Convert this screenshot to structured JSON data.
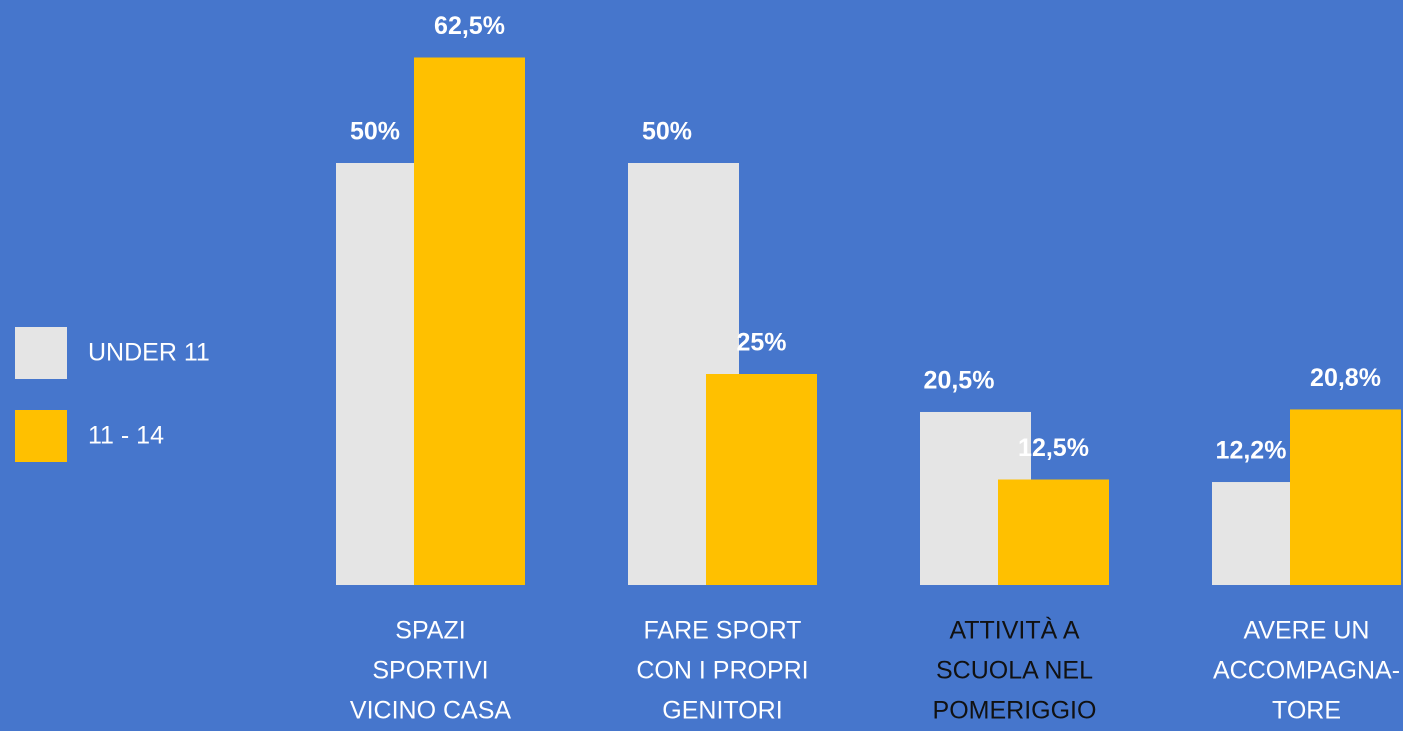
{
  "chart_data": {
    "type": "bar",
    "categories": [
      [
        "SPAZI",
        "SPORTIVI",
        "VICINO CASA"
      ],
      [
        "FARE SPORT",
        "CON I PROPRI",
        "GENITORI"
      ],
      [
        "ATTIVITÀ A",
        "SCUOLA NEL",
        "POMERIGGIO"
      ],
      [
        "AVERE UN",
        "ACCOMPAGNA-",
        "TORE"
      ]
    ],
    "series": [
      {
        "name": "UNDER 11",
        "color": "#e5e5e5",
        "values": [
          50,
          50,
          20.5,
          12.2
        ],
        "value_labels": [
          "50%",
          "50%",
          "20,5%",
          "12,2%"
        ]
      },
      {
        "name": "11 - 14",
        "color": "#ffc000",
        "values": [
          62.5,
          25,
          12.5,
          20.8
        ],
        "value_labels": [
          "62,5%",
          "25%",
          "12,5%",
          "20,8%"
        ]
      }
    ]
  }
}
